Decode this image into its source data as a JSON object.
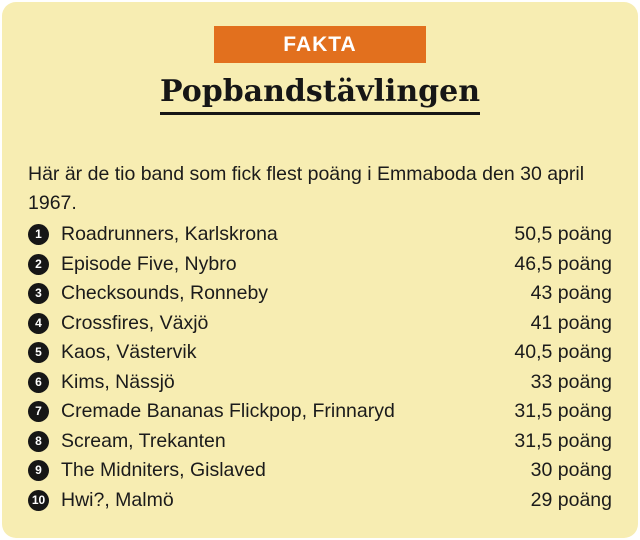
{
  "banner": {
    "label": "FAKTA"
  },
  "title": "Popbandstävlingen",
  "intro": "Här är de tio band som fick flest poäng i Emmaboda den 30 april 1967.",
  "ranking": [
    {
      "rank": "1",
      "band": "Roadrunners, Karlskrona",
      "points": "50,5 poäng"
    },
    {
      "rank": "2",
      "band": "Episode Five, Nybro",
      "points": "46,5 poäng"
    },
    {
      "rank": "3",
      "band": "Checksounds, Ronneby",
      "points": "43 poäng"
    },
    {
      "rank": "4",
      "band": "Crossfires, Växjö",
      "points": "41 poäng"
    },
    {
      "rank": "5",
      "band": "Kaos, Västervik",
      "points": "40,5 poäng"
    },
    {
      "rank": "6",
      "band": "Kims, Nässjö",
      "points": "33 poäng"
    },
    {
      "rank": "7",
      "band": "Cremade Bananas Flickpop, Frinnaryd",
      "points": "31,5 poäng"
    },
    {
      "rank": "8",
      "band": "Scream, Trekanten",
      "points": "31,5 poäng"
    },
    {
      "rank": "9",
      "band": "The Midniters, Gislaved",
      "points": "30 poäng"
    },
    {
      "rank": "10",
      "band": "Hwi?, Malmö",
      "points": "29 poäng"
    }
  ],
  "colors": {
    "background": "#f7edb2",
    "banner": "#e2701e",
    "banner_text": "#ffffff",
    "text": "#1b1b1b",
    "badge": "#161616"
  }
}
